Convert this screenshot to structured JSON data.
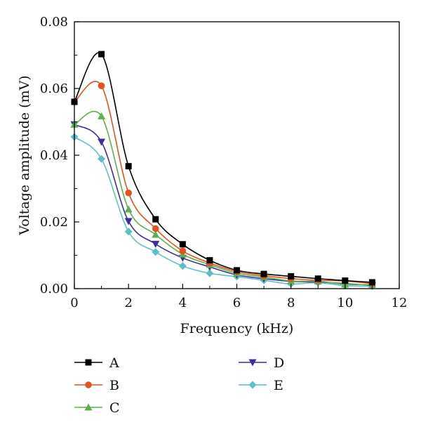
{
  "chart_data": {
    "type": "line",
    "title": "",
    "xlabel": "Frequency (kHz)",
    "ylabel": "Voltage amplitude (mV)",
    "xlim": [
      0,
      12
    ],
    "ylim": [
      0,
      0.08
    ],
    "x_ticks": [
      "0",
      "2",
      "4",
      "6",
      "8",
      "10",
      "12"
    ],
    "y_ticks": [
      "0.00",
      "0.02",
      "0.04",
      "0.06",
      "0.08"
    ],
    "grid": false,
    "legend_position": "bottom",
    "x": [
      0,
      1,
      2,
      3,
      4,
      5,
      6,
      7,
      8,
      9,
      10,
      11
    ],
    "series": [
      {
        "name": "A",
        "color": "#000000",
        "marker": "square",
        "values": [
          0.056,
          0.0703,
          0.0367,
          0.0208,
          0.0133,
          0.0085,
          0.0055,
          0.0044,
          0.0037,
          0.003,
          0.0024,
          0.0019
        ]
      },
      {
        "name": "B",
        "color": "#e8501c",
        "marker": "circle",
        "values": [
          0.056,
          0.0608,
          0.0287,
          0.018,
          0.0113,
          0.0077,
          0.0051,
          0.0039,
          0.003,
          0.0025,
          0.0023,
          0.0015
        ]
      },
      {
        "name": "C",
        "color": "#5fb04a",
        "marker": "triangle-up",
        "values": [
          0.0492,
          0.0517,
          0.0238,
          0.0162,
          0.0103,
          0.0072,
          0.0046,
          0.0035,
          0.0023,
          0.0022,
          0.0013,
          0.0012
        ]
      },
      {
        "name": "D",
        "color": "#3a2ea0",
        "marker": "triangle-down",
        "values": [
          0.0492,
          0.044,
          0.0202,
          0.0134,
          0.0092,
          0.0065,
          0.0041,
          0.003,
          0.0022,
          0.002,
          0.0015,
          0.001
        ]
      },
      {
        "name": "E",
        "color": "#5fbfc8",
        "marker": "diamond",
        "values": [
          0.0455,
          0.0389,
          0.0171,
          0.011,
          0.0068,
          0.0046,
          0.0036,
          0.0025,
          0.0014,
          0.0018,
          0.0009,
          0.0007
        ]
      }
    ]
  }
}
